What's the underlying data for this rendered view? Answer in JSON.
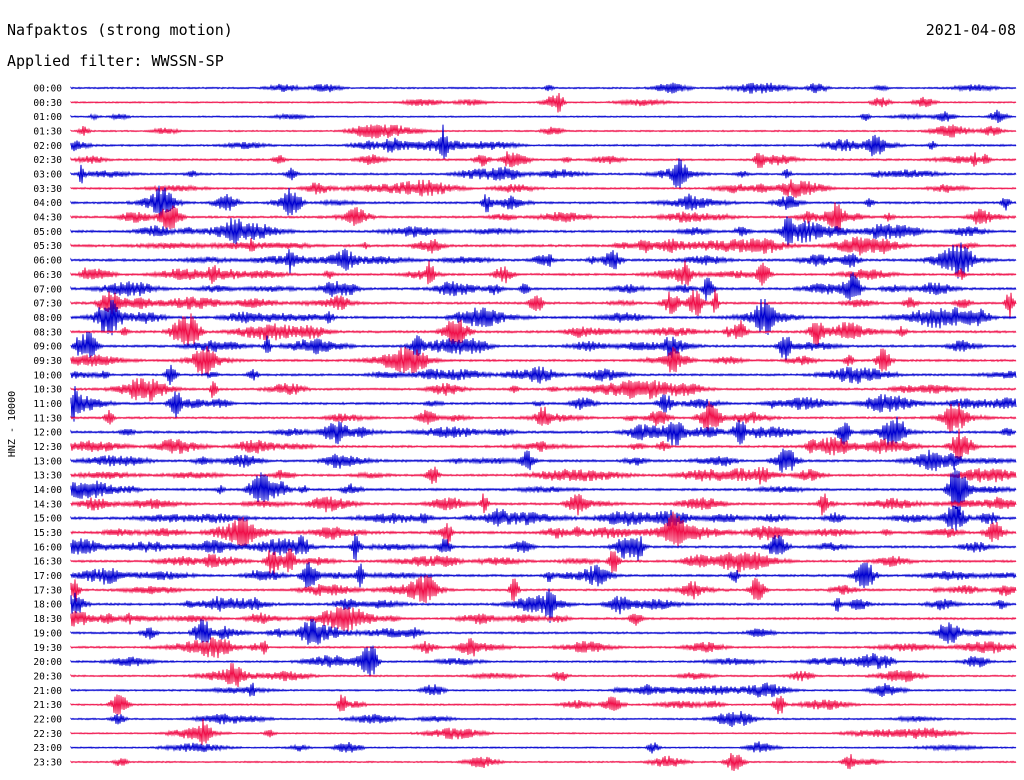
{
  "header": {
    "station": "Nafpaktos (strong motion)",
    "date": "2021-04-08",
    "filter": "Applied filter: WWSSN-SP"
  },
  "chart_data": {
    "type": "line",
    "title": "Nafpaktos (strong motion)",
    "subtitle": "Applied filter: WWSSN-SP",
    "date": "2021-04-08",
    "ylabel": "HNZ - 10000",
    "xlabel": "",
    "grid": false,
    "legend": "none",
    "series_colors": [
      "#0000d0",
      "#f0104a"
    ],
    "rows": [
      "00:00",
      "00:30",
      "01:00",
      "01:30",
      "02:00",
      "02:30",
      "03:00",
      "03:30",
      "04:00",
      "04:30",
      "05:00",
      "05:30",
      "06:00",
      "06:30",
      "07:00",
      "07:30",
      "08:00",
      "08:30",
      "09:00",
      "09:30",
      "10:00",
      "10:30",
      "11:00",
      "11:30",
      "12:00",
      "12:30",
      "13:00",
      "13:30",
      "14:00",
      "14:30",
      "15:00",
      "15:30",
      "16:00",
      "16:30",
      "17:00",
      "17:30",
      "18:00",
      "18:30",
      "19:00",
      "19:30",
      "20:00",
      "20:30",
      "21:00",
      "21:30",
      "22:00",
      "22:30",
      "23:00",
      "23:30"
    ],
    "activity": [
      0.15,
      0.12,
      0.1,
      0.1,
      0.35,
      0.35,
      0.4,
      0.3,
      0.45,
      0.45,
      0.55,
      0.65,
      0.6,
      0.45,
      0.55,
      0.5,
      0.6,
      0.55,
      0.55,
      0.45,
      0.45,
      0.45,
      0.5,
      0.4,
      0.55,
      0.5,
      0.55,
      0.45,
      0.55,
      0.5,
      0.65,
      0.65,
      0.5,
      0.5,
      0.5,
      0.4,
      0.55,
      0.45,
      0.4,
      0.35,
      0.3,
      0.2,
      0.25,
      0.2,
      0.15,
      0.08,
      0.08,
      0.08
    ]
  }
}
